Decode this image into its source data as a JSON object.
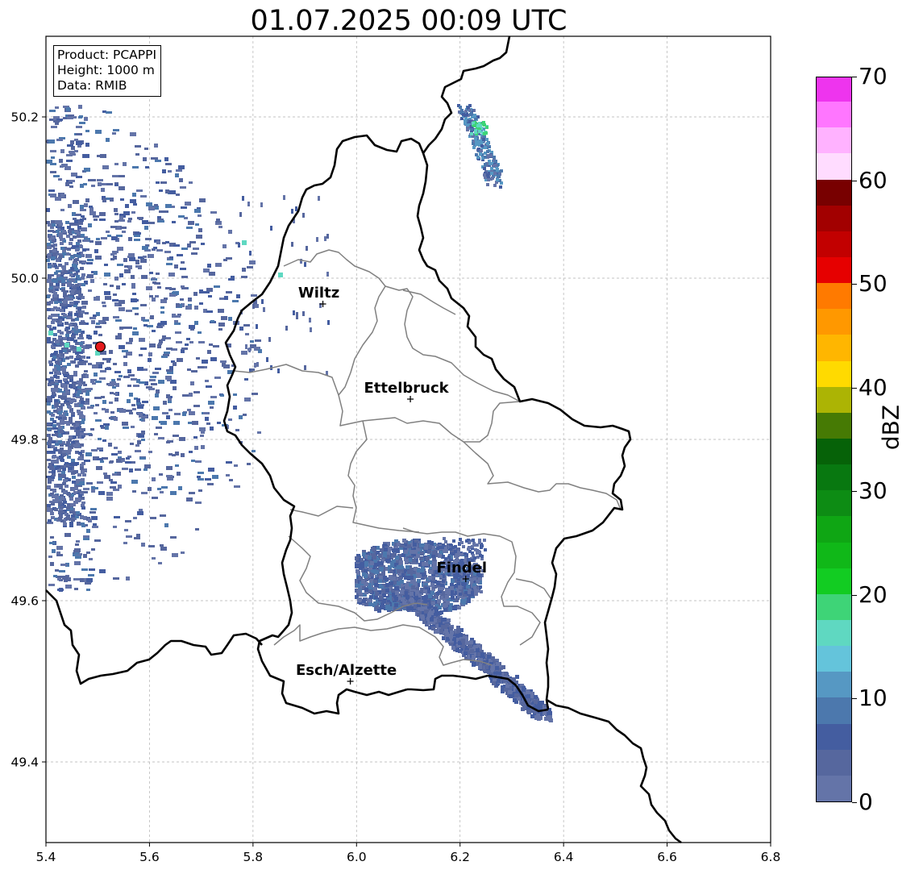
{
  "title": "01.07.2025 00:09 UTC",
  "info": {
    "product": "Product: PCAPPI",
    "height": "Height: 1000 m",
    "data": "Data: RMIB"
  },
  "axes": {
    "x_ticks": [
      "5.4",
      "5.6",
      "5.8",
      "6.0",
      "6.2",
      "6.4",
      "6.6",
      "6.8"
    ],
    "y_ticks": [
      "49.4",
      "49.6",
      "49.8",
      "50.0",
      "50.2"
    ],
    "x_range": [
      5.4,
      6.8
    ],
    "y_range": [
      49.3,
      50.3
    ],
    "grid": true
  },
  "places": [
    {
      "name": "Wiltz",
      "lon": 5.935,
      "lat": 49.968
    },
    {
      "name": "Ettelbruck",
      "lon": 6.104,
      "lat": 49.85
    },
    {
      "name": "Findel",
      "lon": 6.211,
      "lat": 49.627
    },
    {
      "name": "Esch/Alzette",
      "lon": 5.988,
      "lat": 49.5
    }
  ],
  "radar_site": {
    "lon": 5.505,
    "lat": 49.915,
    "color": "#e41a1c"
  },
  "colorbar": {
    "label": "dBZ",
    "min": 0,
    "max": 70,
    "ticks": [
      "0",
      "10",
      "20",
      "30",
      "40",
      "50",
      "60",
      "70"
    ],
    "colors": [
      "#6474a8",
      "#56679e",
      "#445da0",
      "#4c78ad",
      "#5698c3",
      "#64c4db",
      "#5fd8c1",
      "#3ed477",
      "#12cc22",
      "#10b818",
      "#0fa614",
      "#0d8c14",
      "#087810",
      "#066208",
      "#467a04",
      "#acb404",
      "#ffda00",
      "#ffb600",
      "#ff9800",
      "#ff7a00",
      "#e60000",
      "#c20000",
      "#a20000",
      "#780000",
      "#ffdcff",
      "#ffb2ff",
      "#ff76ff",
      "#ee34ee"
    ]
  },
  "colors": {
    "border": "#000000",
    "district": "#808080",
    "grid": "#b0b0b0"
  }
}
